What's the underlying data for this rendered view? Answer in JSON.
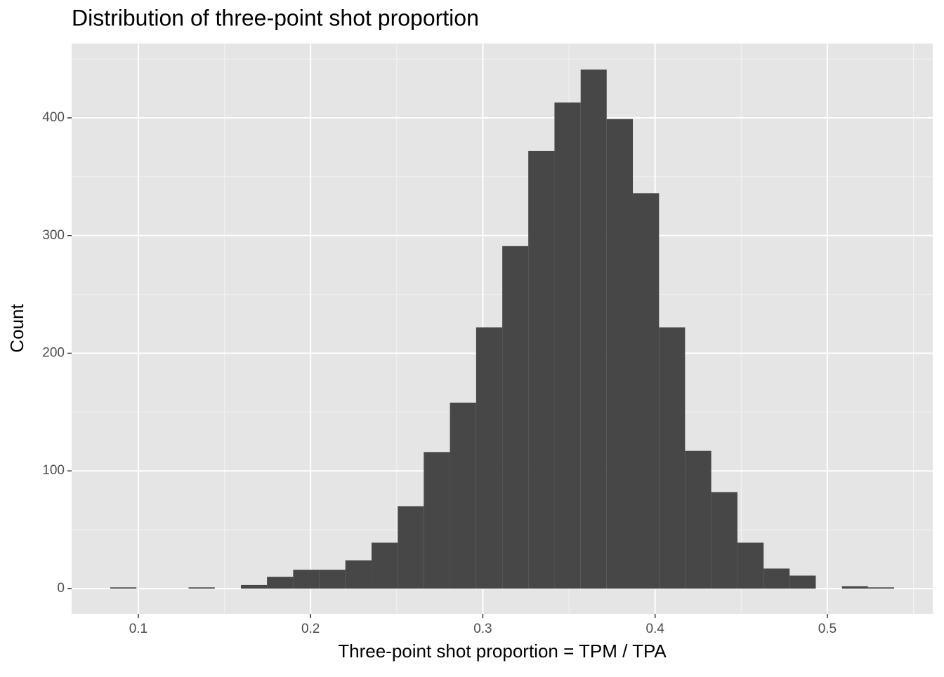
{
  "chart_data": {
    "type": "histogram",
    "title": "Distribution of three-point shot proportion",
    "x_label": "Three-point shot proportion = TPM / TPA",
    "y_label": "Count",
    "bins": [
      0.0837,
      0.0989,
      0.114,
      0.1292,
      0.1444,
      0.1596,
      0.1747,
      0.1899,
      0.2051,
      0.2202,
      0.2354,
      0.2506,
      0.2657,
      0.2809,
      0.2961,
      0.3113,
      0.3264,
      0.3416,
      0.3568,
      0.3719,
      0.3871,
      0.4023,
      0.4174,
      0.4326,
      0.4478,
      0.463,
      0.4781,
      0.4933,
      0.5085,
      0.5236,
      0.5388
    ],
    "values": [
      1,
      0,
      0,
      1,
      0,
      3,
      10,
      16,
      16,
      24,
      39,
      70,
      116,
      158,
      222,
      291,
      372,
      413,
      441,
      399,
      336,
      222,
      117,
      82,
      39,
      17,
      11,
      0,
      2,
      1
    ],
    "color": "#474747",
    "xlim": [
      0.0613,
      0.5612
    ],
    "ylim": [
      -21.5,
      463.2
    ],
    "xticks": [
      0.1,
      0.2,
      0.3,
      0.4,
      0.5
    ],
    "yticks": [
      0,
      100,
      200,
      300,
      400
    ],
    "grid": true
  }
}
